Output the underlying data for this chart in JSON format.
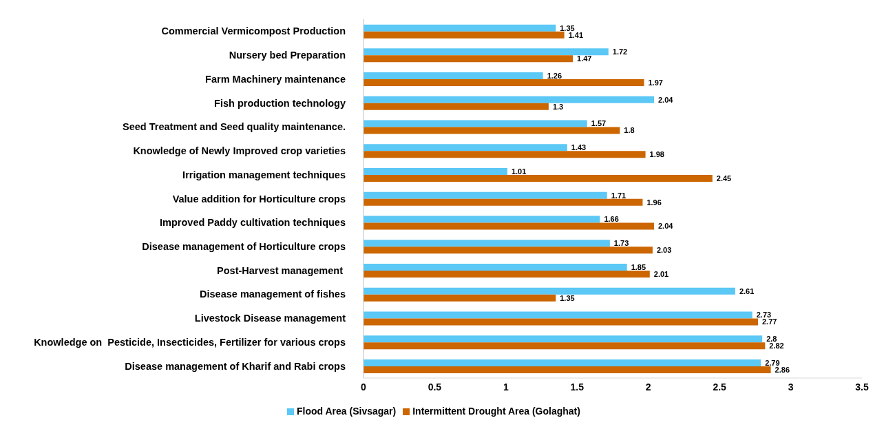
{
  "chart_data": {
    "type": "bar",
    "orientation": "horizontal",
    "categories": [
      "Commercial Vermicompost Production",
      "Nursery bed Preparation",
      "Farm Machinery maintenance",
      "Fish production technology",
      "Seed Treatment and Seed quality maintenance.",
      "Knowledge of Newly Improved crop varieties",
      "Irrigation management techniques",
      "Value addition for Horticulture crops",
      "Improved Paddy cultivation techniques",
      "Disease management of Horticulture crops",
      "Post-Harvest management ",
      "Disease management of fishes",
      "Livestock Disease management",
      "Knowledge on  Pesticide, Insecticides, Fertilizer for various crops",
      "Disease management of Kharif and Rabi crops"
    ],
    "series": [
      {
        "name": "Flood Area (Sivsagar)",
        "color": "#5bc8f5",
        "values": [
          1.35,
          1.72,
          1.26,
          2.04,
          1.57,
          1.43,
          1.01,
          1.71,
          1.66,
          1.73,
          1.85,
          2.61,
          2.73,
          2.8,
          2.79
        ]
      },
      {
        "name": "Intermittent Drought Area (Golaghat)",
        "color": "#cc6600",
        "values": [
          1.41,
          1.47,
          1.97,
          1.3,
          1.8,
          1.98,
          2.45,
          1.96,
          2.04,
          2.03,
          2.01,
          1.35,
          2.77,
          2.82,
          2.86
        ]
      }
    ],
    "xlim": [
      0,
      3.5
    ],
    "xticks": [
      0,
      0.5,
      1,
      1.5,
      2,
      2.5,
      3,
      3.5
    ],
    "grid": false,
    "legend": "bottom",
    "data_labels": true
  }
}
